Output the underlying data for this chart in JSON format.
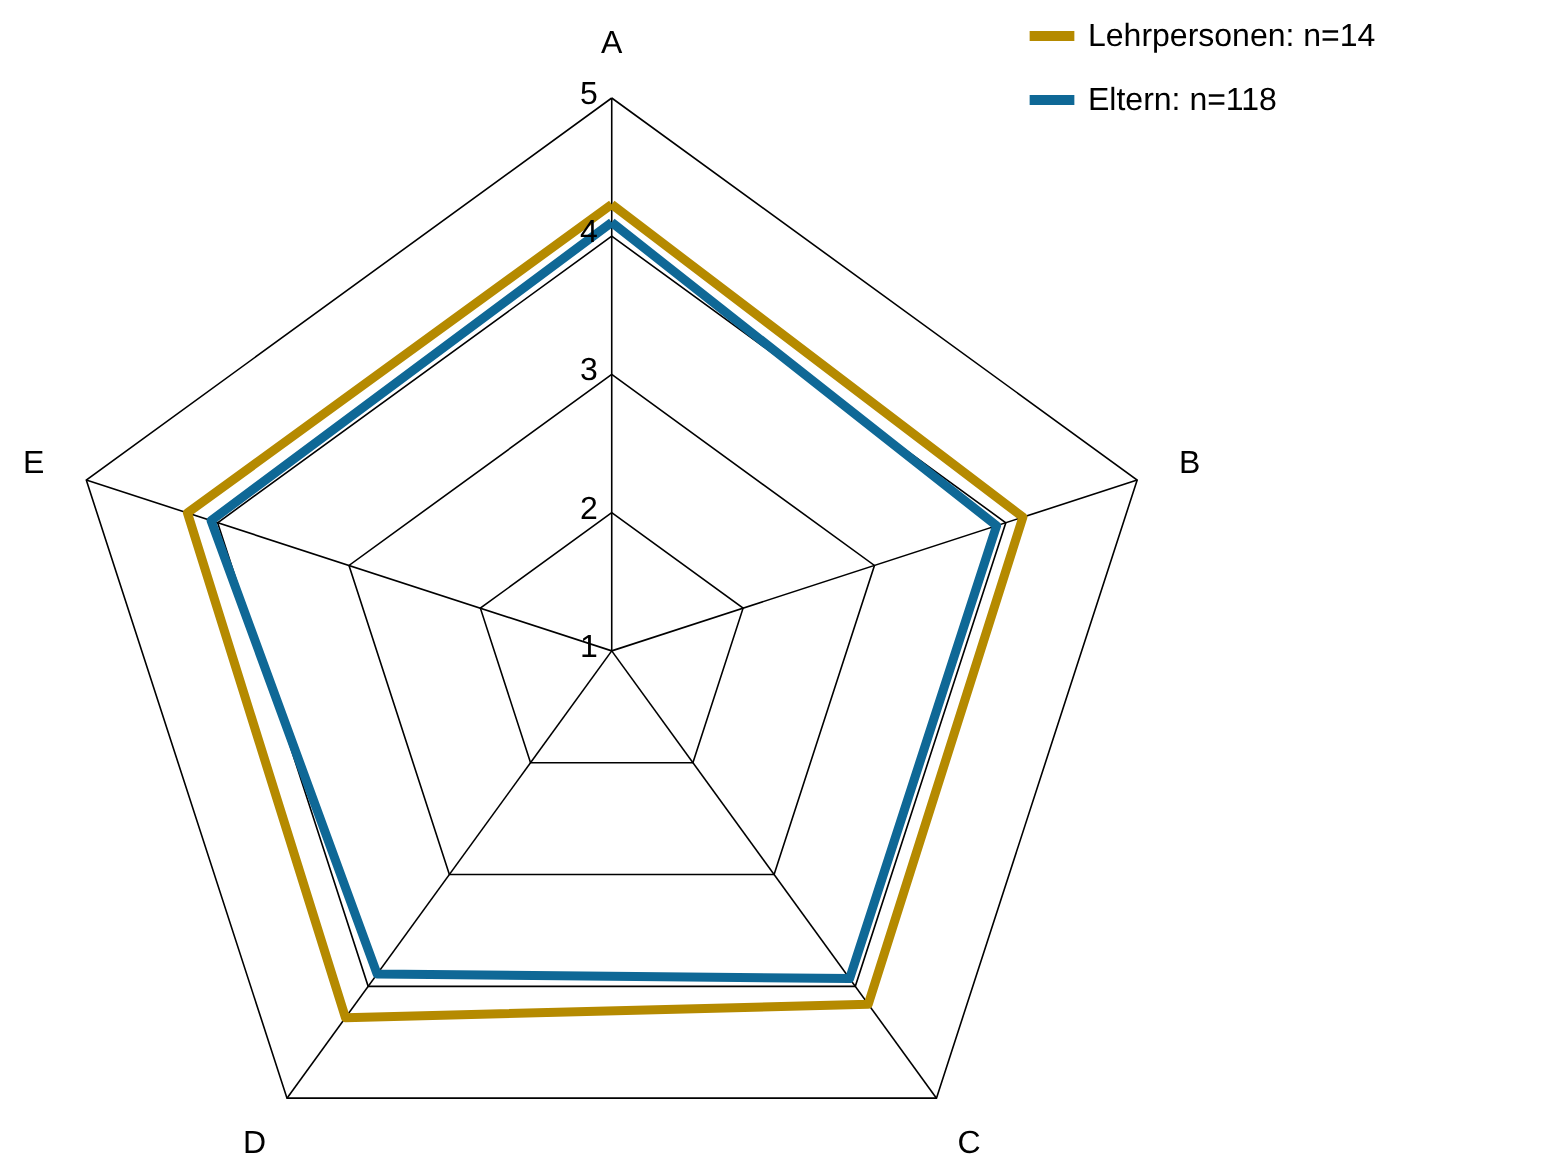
{
  "chart_data": {
    "type": "radar",
    "categories": [
      "A",
      "B",
      "C",
      "D",
      "E"
    ],
    "ylim": [
      1,
      5
    ],
    "yticks": [
      1,
      2,
      3,
      4,
      5
    ],
    "grid": true,
    "legend": "top right",
    "series": [
      {
        "name": "Lehrpersonen: n=14",
        "color": "#b58a00",
        "values": [
          4.23,
          4.13,
          4.16,
          4.28,
          4.23
        ]
      },
      {
        "name": "Eltern: n=118",
        "color": "#0f6896",
        "values": [
          4.1,
          3.93,
          3.93,
          3.89,
          4.05
        ]
      }
    ]
  }
}
